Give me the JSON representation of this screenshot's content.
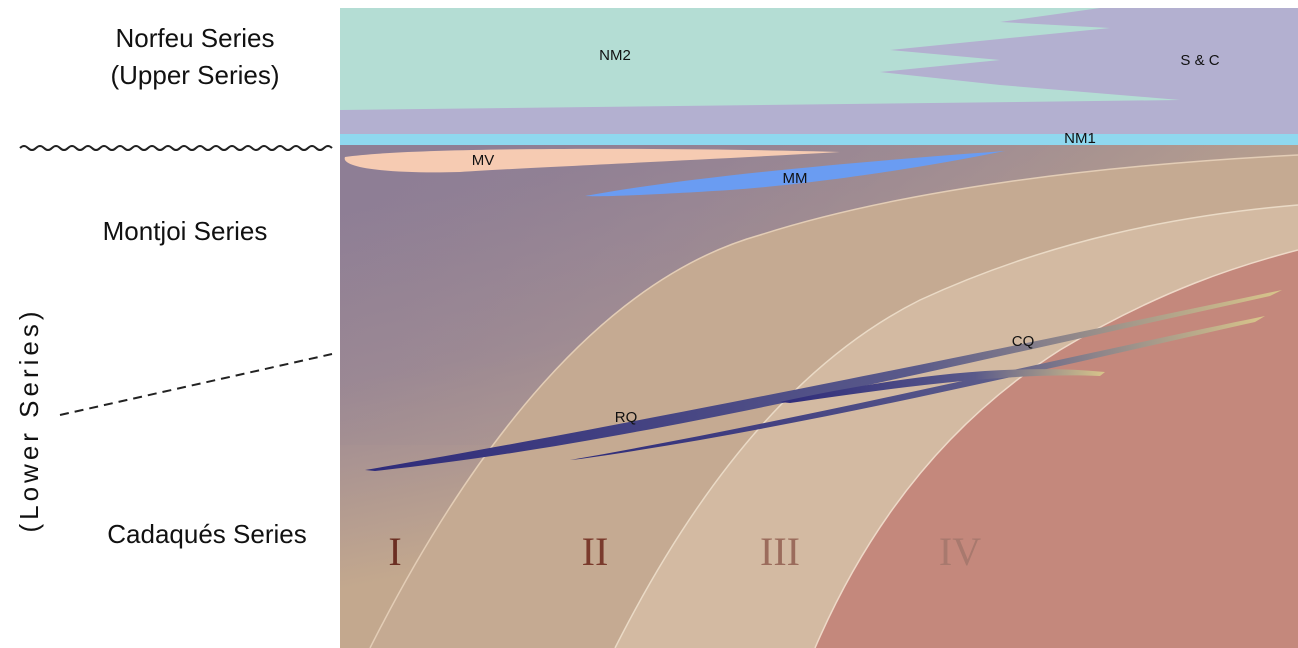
{
  "series_labels": {
    "norfeu": "Norfeu Series",
    "upper": "(Upper Series)",
    "montjoi": "Montjoi Series",
    "lower": "(Lower Series)",
    "cadaques": "Cadaqués Series"
  },
  "units": {
    "nm2": "NM2",
    "sc": "S & C",
    "nm1": "NM1",
    "mv": "MV",
    "mm": "MM",
    "cq": "CQ",
    "rq": "RQ"
  },
  "zones": [
    "I",
    "II",
    "III",
    "IV"
  ]
}
